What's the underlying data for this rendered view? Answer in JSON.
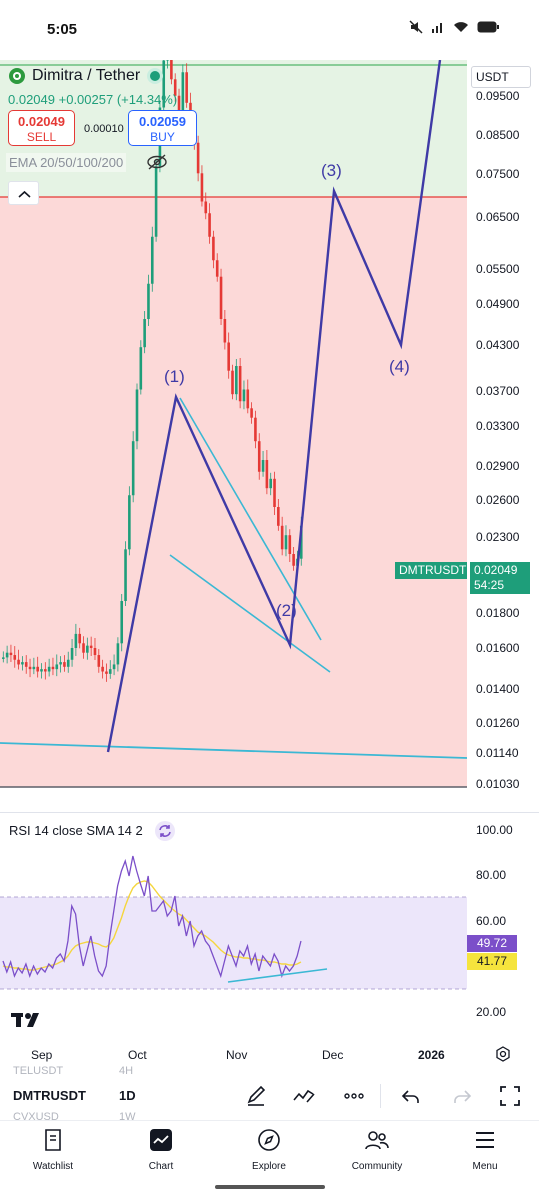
{
  "status": {
    "time": "5:05"
  },
  "header": {
    "symbol_title": "Dimitra / Tether",
    "last_price": "0.02049",
    "change": "+0.00257 (+14.34%)",
    "sell": {
      "price": "0.02049",
      "label": "SELL"
    },
    "buy": {
      "price": "0.02059",
      "label": "BUY"
    },
    "spread": "0.00010",
    "indicator_label": "EMA 20/50/100/200",
    "currency": "USDT"
  },
  "colors": {
    "up": "#1e9e7a",
    "down": "#e53935",
    "wave": "#3f3aa6",
    "trend": "#3bb8d4",
    "rsi": "#7b4fc9",
    "rsi_ma": "#f5d63d"
  },
  "price_axis": [
    "0.09500",
    "0.08500",
    "0.07500",
    "0.06500",
    "0.05500",
    "0.04900",
    "0.04300",
    "0.03700",
    "0.03300",
    "0.02900",
    "0.02600",
    "0.02300",
    "0.01800",
    "0.01600",
    "0.01400",
    "0.01260",
    "0.01140",
    "0.01030"
  ],
  "price_tag": {
    "symbol": "DMTRUSDT",
    "price": "0.02049",
    "countdown": "54:25"
  },
  "waves": [
    "(1)",
    "(2)",
    "(3)",
    "(4)"
  ],
  "rsi": {
    "label": "RSI 14 close SMA 14 2",
    "axis": [
      "100.00",
      "80.00",
      "60.00",
      "20.00"
    ],
    "value": "49.72",
    "ma_value": "41.77"
  },
  "time_axis": [
    "Sep",
    "Oct",
    "Nov",
    "Dec",
    "2026"
  ],
  "toolbar": {
    "symbol": "DMTRUSDT",
    "interval": "1D",
    "ghost_above": "TELUSDT",
    "ghost_above_val": "4H",
    "ghost_below": "CVXUSD",
    "ghost_below_val": "1W"
  },
  "nav": [
    "Watchlist",
    "Chart",
    "Explore",
    "Community",
    "Menu"
  ],
  "chart_data": {
    "type": "candlestick",
    "title": "Dimitra / Tether",
    "interval": "1D",
    "currency": "USDT",
    "ylim": [
      0.0103,
      0.095
    ],
    "x": [
      "Sep",
      "Oct",
      "Nov",
      "Dec",
      "2026"
    ],
    "series": [
      {
        "name": "DMTRUSDT",
        "type": "candlestick",
        "last": 0.02049
      },
      {
        "name": "RSI 14 close SMA 14 2",
        "type": "line",
        "last": 49.72
      },
      {
        "type": "line",
        "last": 41.77
      }
    ],
    "annotations": [
      "(1)",
      "(2)",
      "(3)",
      "(4)"
    ]
  }
}
